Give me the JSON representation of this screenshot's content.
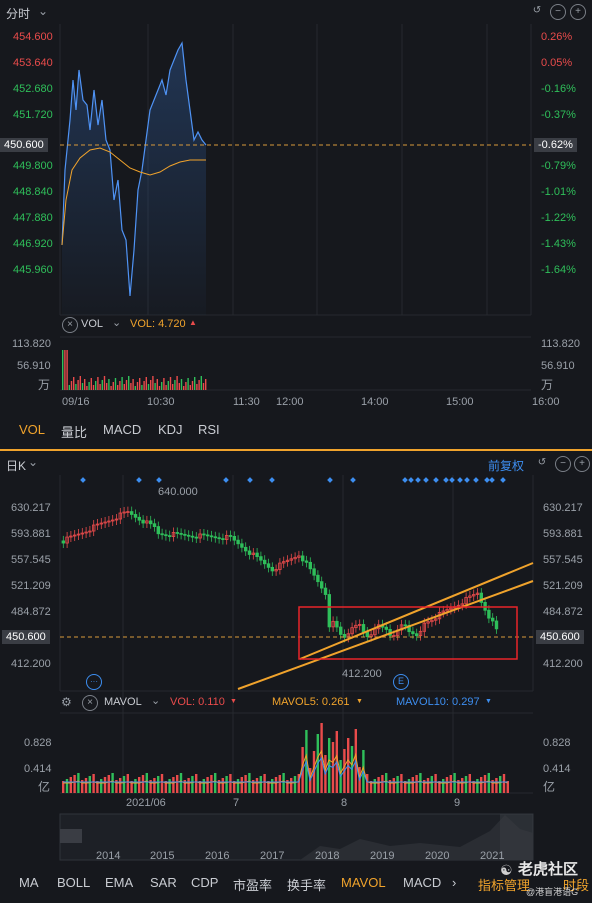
{
  "intraday": {
    "title": "分时",
    "price_labels": [
      "454.600",
      "453.640",
      "452.680",
      "451.720",
      "450.600",
      "449.800",
      "448.840",
      "447.880",
      "446.920",
      "445.960"
    ],
    "pct_labels": [
      "0.26%",
      "0.05%",
      "-0.16%",
      "-0.37%",
      "-0.62%",
      "-0.79%",
      "-1.01%",
      "-1.22%",
      "-1.43%",
      "-1.64%"
    ],
    "current_price": "450.600",
    "current_pct": "-0.62%",
    "vol_indicator": "VOL",
    "vol_value": "VOL: 4.720",
    "vol_scale": [
      "113.820",
      "56.910"
    ],
    "vol_scale_right": [
      "113.820",
      "56.910"
    ],
    "vol_unit": "万",
    "time_labels": [
      "09/16",
      "10:30",
      "11:30",
      "12:00",
      "14:00",
      "15:00",
      "16:00"
    ],
    "tabs": [
      "VOL",
      "量比",
      "MACD",
      "KDJ",
      "RSI"
    ]
  },
  "daily": {
    "title": "日K",
    "adjust": "前复权",
    "price_labels": [
      "630.217",
      "593.881",
      "557.545",
      "521.209",
      "484.872",
      "450.600",
      "412.200"
    ],
    "high_annotation": "640.000",
    "low_annotation": "412.200",
    "current_price": "450.600",
    "mavol_label": "MAVOL",
    "vol_text": "VOL: 0.110",
    "mavol5_text": "MAVOL5: 0.261",
    "mavol10_text": "MAVOL10: 0.297",
    "vol_scale": [
      "0.828",
      "0.414"
    ],
    "vol_unit": "亿",
    "month_labels": [
      "2021/06",
      "7",
      "8",
      "9"
    ],
    "year_labels": [
      "2014",
      "2015",
      "2016",
      "2017",
      "2018",
      "2019",
      "2020",
      "2021"
    ],
    "event_marker": "E",
    "tabs": [
      "MA",
      "BOLL",
      "EMA",
      "SAR",
      "CDP",
      "市盈率",
      "换手率",
      "MAVOL",
      "MACD"
    ],
    "more_tab": "›",
    "manage": "指标管理",
    "time_tab": "时段",
    "watermark": "老虎社区",
    "watermark_sub": "@港盲港语G"
  },
  "colors": {
    "up": "#e94b4b",
    "down": "#2fbf5a",
    "accent": "#f0a32c",
    "line": "#4f93f5",
    "bg": "#16181d"
  }
}
